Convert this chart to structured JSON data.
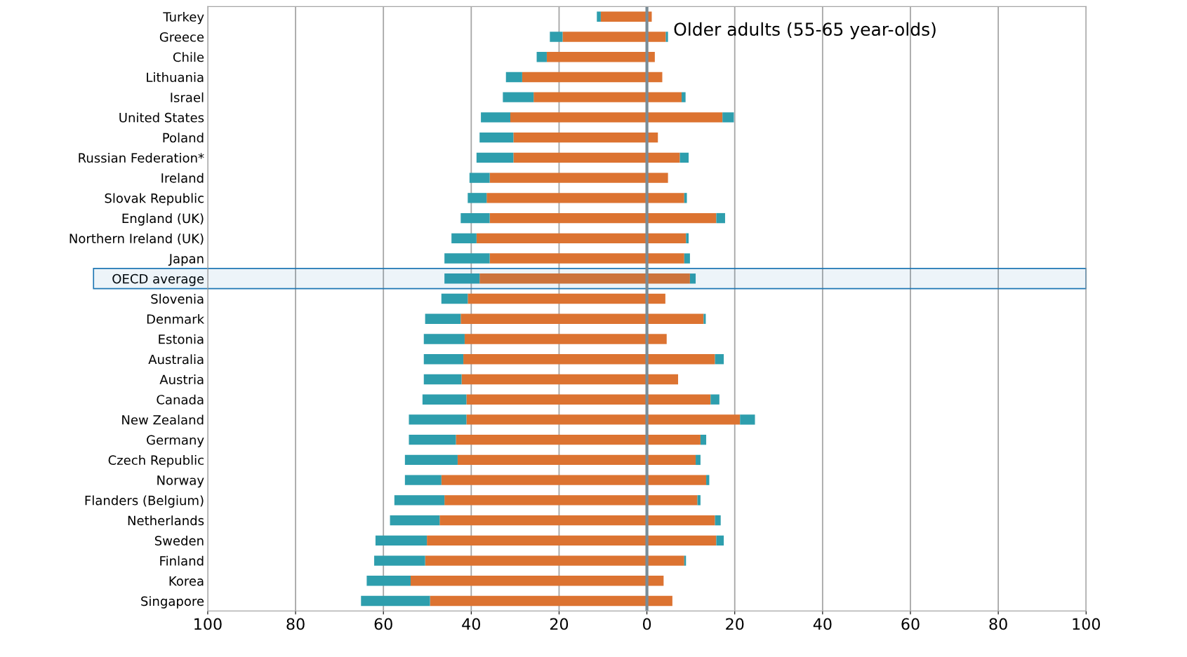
{
  "chart_data": {
    "type": "bar",
    "orientation": "horizontal",
    "stacked": true,
    "categories": [
      "Turkey",
      "Greece",
      "Chile",
      "Lithuania",
      "Israel",
      "United States",
      "Poland",
      "Russian Federation*",
      "Ireland",
      "Slovak Republic",
      "England (UK)",
      "Northern Ireland (UK)",
      "Japan",
      "OECD average",
      "Slovenia",
      "Denmark",
      "Estonia",
      "Australia",
      "Austria",
      "Canada",
      "New Zealand",
      "Germany",
      "Czech Republic",
      "Norway",
      "Flanders (Belgium)",
      "Netherlands",
      "Sweden",
      "Finland",
      "Korea",
      "Singapore"
    ],
    "series": [
      {
        "color": "#dc7331",
        "values": [
          -10.5,
          -19.2,
          -22.8,
          -28.4,
          -25.8,
          -31.1,
          -30.4,
          -30.4,
          -35.8,
          -36.5,
          -35.8,
          -38.8,
          -35.8,
          -38.1,
          -40.8,
          -42.4,
          -41.5,
          -41.8,
          -42.2,
          -41.1,
          -41.1,
          -43.5,
          -43.1,
          -46.8,
          -46.1,
          -47.2,
          -50.1,
          -50.5,
          -53.8,
          -49.4
        ]
      },
      {
        "color": "#2e9ead",
        "values": [
          -0.9,
          -2.9,
          -2.3,
          -3.7,
          -7.0,
          -6.7,
          -7.7,
          -8.4,
          -4.6,
          -4.3,
          -6.6,
          -5.7,
          -10.3,
          -8.0,
          -6.0,
          -8.1,
          -9.3,
          -9.0,
          -8.6,
          -10.0,
          -13.1,
          -10.7,
          -12.0,
          -8.3,
          -11.4,
          -11.3,
          -11.7,
          -11.6,
          -10.0,
          -15.7
        ]
      },
      {
        "color": "#dc7331",
        "values": [
          1.1,
          4.3,
          1.8,
          3.5,
          7.9,
          17.2,
          2.5,
          7.5,
          4.8,
          8.5,
          15.8,
          8.9,
          8.5,
          9.8,
          4.2,
          12.9,
          4.5,
          15.5,
          7.1,
          14.5,
          21.2,
          12.2,
          11.1,
          13.5,
          11.5,
          15.5,
          15.8,
          8.5,
          3.8,
          5.8
        ]
      },
      {
        "color": "#2e9ead",
        "values": [
          null,
          0.5,
          null,
          null,
          0.9,
          2.6,
          null,
          2.0,
          null,
          0.6,
          2.0,
          0.6,
          1.3,
          1.3,
          null,
          0.5,
          null,
          2.0,
          null,
          2.0,
          3.4,
          1.3,
          1.1,
          0.7,
          0.7,
          1.3,
          1.7,
          0.4,
          null,
          null
        ]
      }
    ],
    "xlim": [
      -100,
      100
    ],
    "xticks": [
      {
        "value": -100,
        "label": "100"
      },
      {
        "value": -80,
        "label": "80"
      },
      {
        "value": -60,
        "label": "60"
      },
      {
        "value": -40,
        "label": "40"
      },
      {
        "value": -20,
        "label": "20"
      },
      0,
      20,
      40,
      60,
      80,
      100
    ],
    "grid": "x",
    "ref_lines": [
      {
        "axis": "x",
        "value": 0,
        "color": "#7a8c96"
      }
    ],
    "bands": [
      {
        "axis": "y",
        "from": "OECD average",
        "to": "OECD average",
        "color": "#1f77b4"
      }
    ],
    "annotations": [
      "Older adults (55-65 year-olds)"
    ]
  }
}
